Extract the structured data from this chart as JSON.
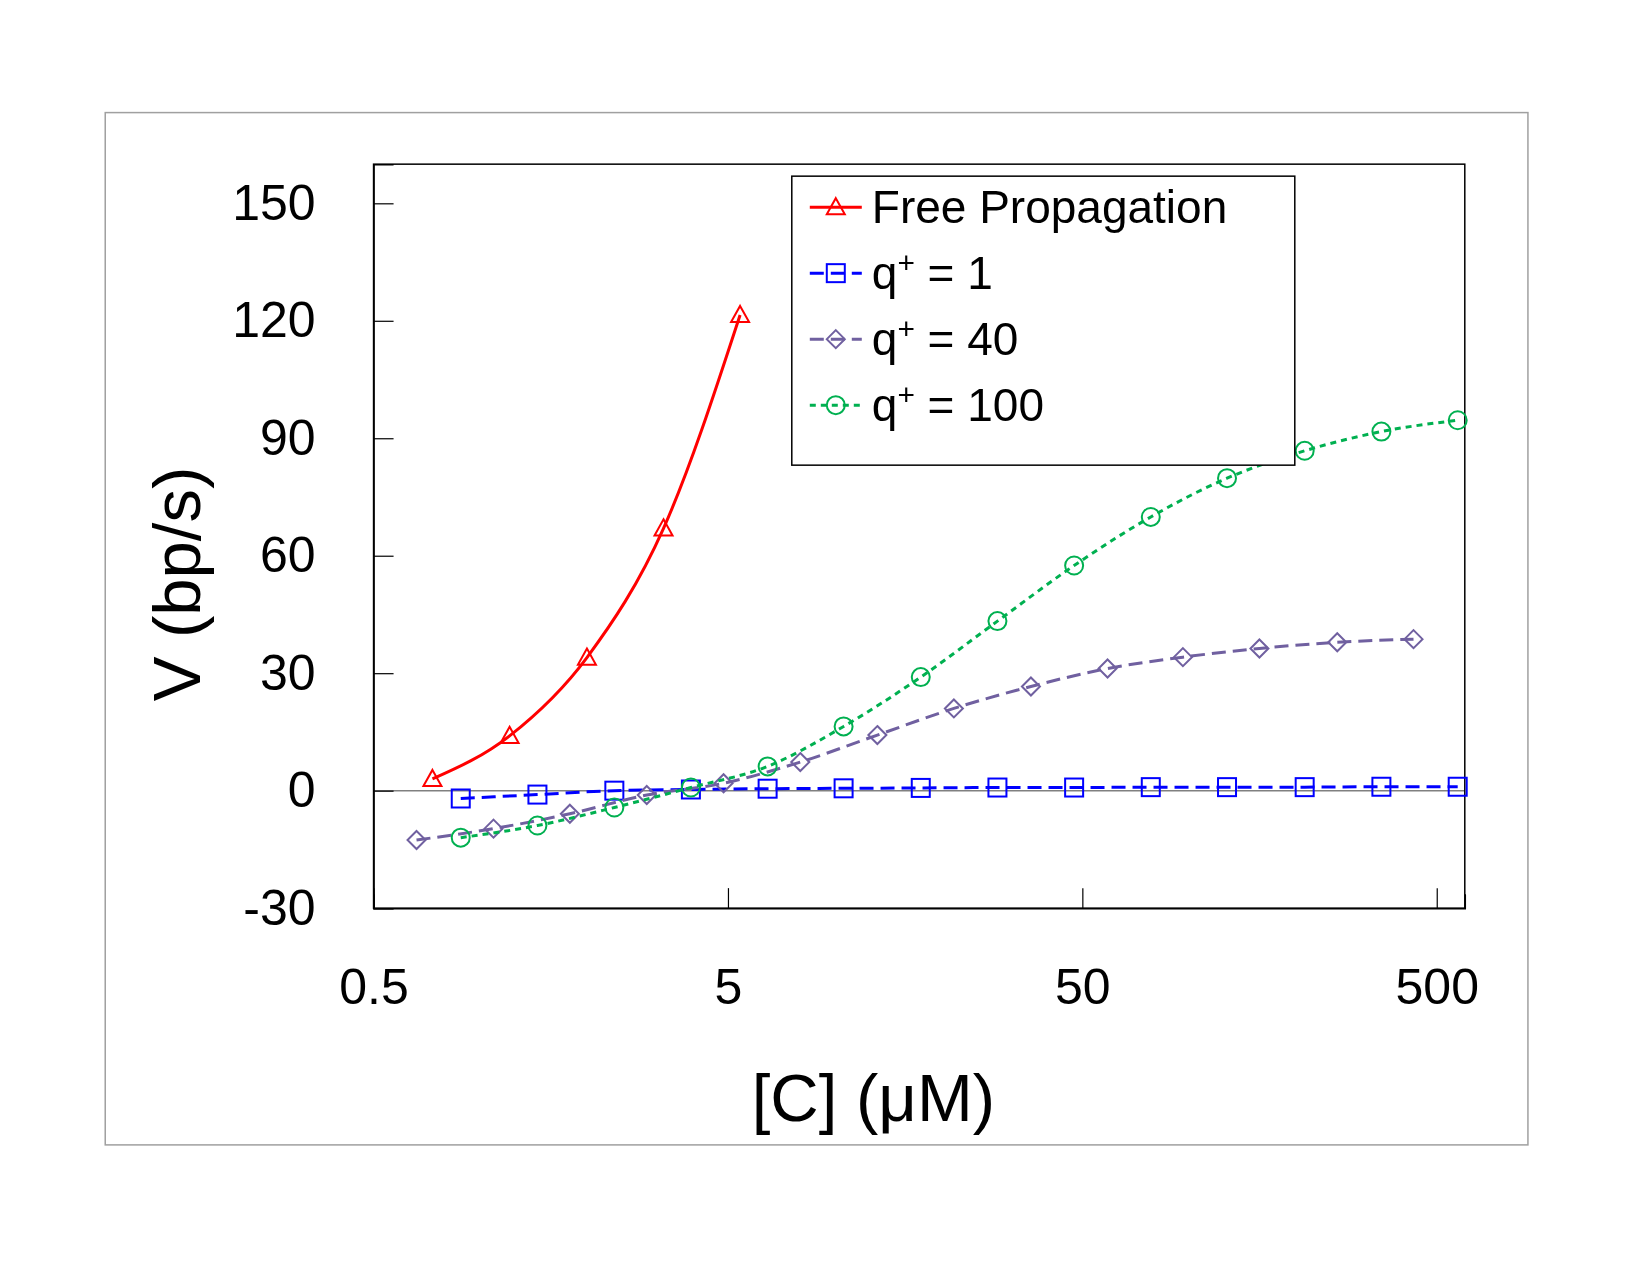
{
  "chart_data": {
    "type": "line",
    "xlabel": "[C] (μM)",
    "ylabel": "V (bp/s)",
    "log": "x",
    "xlim": [
      0.5,
      600
    ],
    "ylim": [
      -30,
      160
    ],
    "xticks": [
      0.5,
      5,
      50,
      500
    ],
    "yticks": [
      -30,
      0,
      30,
      60,
      90,
      120,
      150
    ],
    "grid": false,
    "legend": "top right",
    "ref_lines": [
      {
        "axis": "y",
        "value": 0,
        "color": "#808080"
      }
    ],
    "series": [
      {
        "name": "Free Propagation",
        "color": "#ff0000",
        "marker": "triangle",
        "line_style": "solid",
        "x": [
          0.733,
          1.21,
          2.0,
          3.29,
          5.41
        ],
        "values": [
          3,
          14,
          34,
          67,
          121.5
        ]
      },
      {
        "name": "q$^{+}$ = 1",
        "color": "#0000ff",
        "marker": "square",
        "line_style": "dashed",
        "x": [
          0.881,
          1.45,
          2.39,
          3.93,
          6.47,
          10.6,
          17.5,
          28.8,
          47.4,
          78,
          128,
          212,
          349,
          573
        ],
        "values": [
          -2,
          -1,
          0,
          0.3,
          0.5,
          0.6,
          0.7,
          0.8,
          0.8,
          0.9,
          0.9,
          0.9,
          1,
          1
        ]
      },
      {
        "name": "q$^{+}$ = 40",
        "color": "#7060a0",
        "marker": "diamond",
        "line_style": "dashed",
        "x": [
          0.661,
          1.09,
          1.79,
          2.95,
          4.86,
          8.0,
          13.2,
          21.7,
          35.8,
          58.9,
          96.1,
          158,
          262,
          430
        ],
        "values": [
          -12.6,
          -9.7,
          -5.9,
          -1.1,
          1.9,
          7.3,
          14.2,
          21,
          26.6,
          31.2,
          34.1,
          36.3,
          37.9,
          38.7
        ]
      },
      {
        "name": "q$^{+}$ = 100",
        "color": "#00b050",
        "marker": "circle",
        "line_style": "dotted",
        "x": [
          0.881,
          1.45,
          2.39,
          3.93,
          6.47,
          10.6,
          17.5,
          28.8,
          47.4,
          78,
          128,
          212,
          349,
          573
        ],
        "values": [
          -12,
          -8.9,
          -4.3,
          0.8,
          6.2,
          16.4,
          29,
          43.3,
          57.5,
          69.9,
          79.8,
          86.8,
          91.7,
          94.6
        ]
      }
    ]
  }
}
